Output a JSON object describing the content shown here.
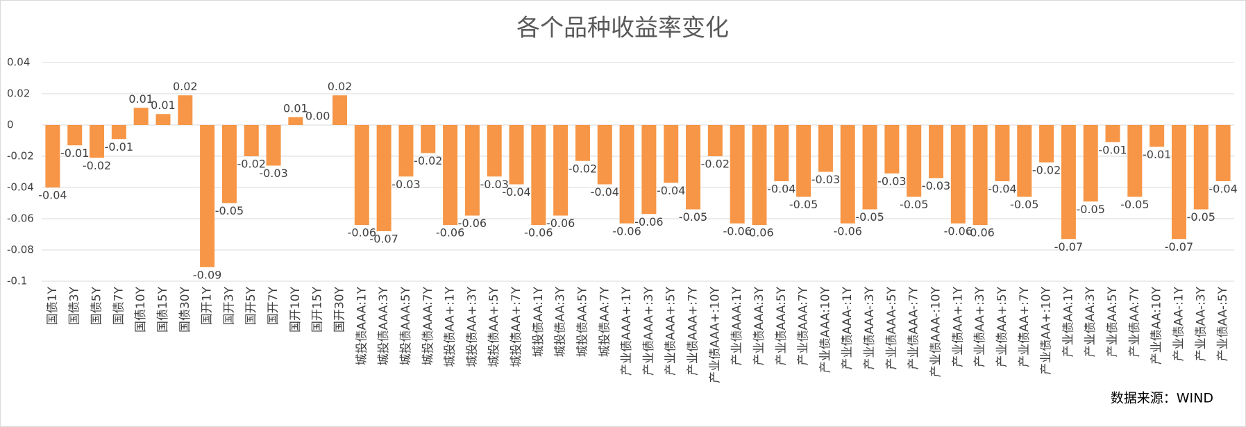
{
  "chart_data": {
    "type": "bar",
    "title": "各个品种收益率变化",
    "source": "数据来源：WIND",
    "categories": [
      "国债1Y",
      "国债3Y",
      "国债5Y",
      "国债7Y",
      "国债10Y",
      "国债15Y",
      "国债30Y",
      "国开1Y",
      "国开3Y",
      "国开5Y",
      "国开7Y",
      "国开10Y",
      "国开15Y",
      "国开30Y",
      "城投债AAA:1Y",
      "城投债AAA:3Y",
      "城投债AAA:5Y",
      "城投债AAA:7Y",
      "城投债AA+:1Y",
      "城投债AA+:3Y",
      "城投债AA+:5Y",
      "城投债AA+:7Y",
      "城投债AA:1Y",
      "城投债AA:3Y",
      "城投债AA:5Y",
      "城投债AA:7Y",
      "产业债AAA+:1Y",
      "产业债AAA+:3Y",
      "产业债AAA+:5Y",
      "产业债AAA+:7Y",
      "产业债AAA+:10Y",
      "产业债AAA:1Y",
      "产业债AAA:3Y",
      "产业债AAA:5Y",
      "产业债AAA:7Y",
      "产业债AAA:10Y",
      "产业债AAA-:1Y",
      "产业债AAA-:3Y",
      "产业债AAA-:5Y",
      "产业债AAA-:7Y",
      "产业债AAA-:10Y",
      "产业债AA+:1Y",
      "产业债AA+:3Y",
      "产业债AA+:5Y",
      "产业债AA+:7Y",
      "产业债AA+:10Y",
      "产业债AA:1Y",
      "产业债AA:3Y",
      "产业债AA:5Y",
      "产业债AA:7Y",
      "产业债AA:10Y",
      "产业债AA-:1Y",
      "产业债AA-:3Y",
      "产业债AA-:5Y"
    ],
    "values": [
      -0.04,
      -0.013,
      -0.021,
      -0.009,
      0.011,
      0.007,
      0.019,
      -0.091,
      -0.05,
      -0.02,
      -0.026,
      0.005,
      0,
      0.019,
      -0.064,
      -0.068,
      -0.033,
      -0.018,
      -0.064,
      -0.058,
      -0.033,
      -0.038,
      -0.064,
      -0.058,
      -0.023,
      -0.038,
      -0.063,
      -0.057,
      -0.037,
      -0.054,
      -0.02,
      -0.063,
      -0.064,
      -0.036,
      -0.046,
      -0.03,
      -0.063,
      -0.054,
      -0.031,
      -0.046,
      -0.034,
      -0.063,
      -0.064,
      -0.036,
      -0.046,
      -0.024,
      -0.073,
      -0.049,
      -0.011,
      -0.046,
      -0.014,
      -0.073,
      -0.054,
      -0.036
    ],
    "value_labels": [
      "-0.04",
      "-0.01",
      "-0.02",
      "-0.01",
      "0.01",
      "0.01",
      "0.02",
      "-0.09",
      "-0.05",
      "-0.02",
      "-0.03",
      "0.01",
      "0.00",
      "0.02",
      "-0.06",
      "-0.07",
      "-0.03",
      "-0.02",
      "-0.06",
      "-0.06",
      "-0.03",
      "-0.04",
      "-0.06",
      "-0.06",
      "-0.02",
      "-0.04",
      "-0.06",
      "-0.06",
      "-0.04",
      "-0.05",
      "-0.02",
      "-0.06",
      "-0.06",
      "-0.04",
      "-0.05",
      "-0.03",
      "-0.06",
      "-0.05",
      "-0.03",
      "-0.05",
      "-0.03",
      "-0.06",
      "-0.06",
      "-0.04",
      "-0.05",
      "-0.02",
      "-0.07",
      "-0.05",
      "-0.01",
      "-0.05",
      "-0.01",
      "-0.07",
      "-0.05",
      "-0.04"
    ],
    "color": "#f79646",
    "ylim": [
      -0.1,
      0.04
    ],
    "yticks": [
      0.04,
      0.02,
      0,
      -0.02,
      -0.04,
      -0.06,
      -0.08,
      -0.1
    ],
    "grid": true
  }
}
